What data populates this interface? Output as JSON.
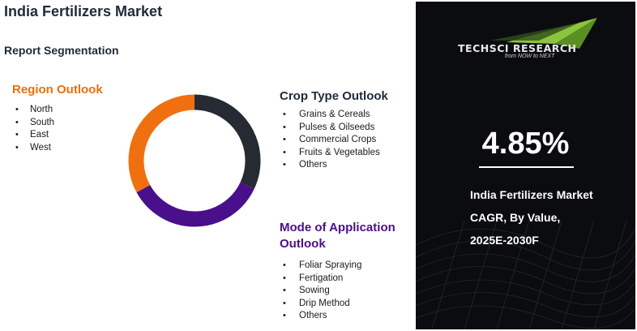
{
  "page": {
    "title": "India Fertilizers Market",
    "subtitle": "Report Segmentation"
  },
  "region": {
    "heading": "Region Outlook",
    "items": [
      "North",
      "South",
      "East",
      "West"
    ]
  },
  "crop": {
    "heading": "Crop Type Outlook",
    "items": [
      "Grains & Cereals",
      "Pulses & Oilseeds",
      "Commercial Crops",
      "Fruits & Vegetables",
      "Others"
    ]
  },
  "mode": {
    "heading": "Mode of Application Outlook",
    "items": [
      "Foliar Spraying",
      "Fertigation",
      "Sowing",
      "Drip Method",
      "Others"
    ]
  },
  "donut": {
    "segments": [
      {
        "share": 0.32,
        "color": "#252a33"
      },
      {
        "share": 0.35,
        "color": "#4a0f8a"
      },
      {
        "share": 0.33,
        "color": "#f07010"
      }
    ]
  },
  "panel": {
    "brand": "TECHSCI RESEARCH",
    "tagline": "from NOW to NEXT",
    "cagr_value": "4.85%",
    "line1": "India Fertilizers Market",
    "line2": "CAGR, By Value,",
    "line3": "2025E-2030F"
  },
  "colors": {
    "region_heading": "#e8700f",
    "mode_heading": "#4a0f8a",
    "panel_bg": "#0b0c0f",
    "logo_green": "#8bc43f"
  }
}
